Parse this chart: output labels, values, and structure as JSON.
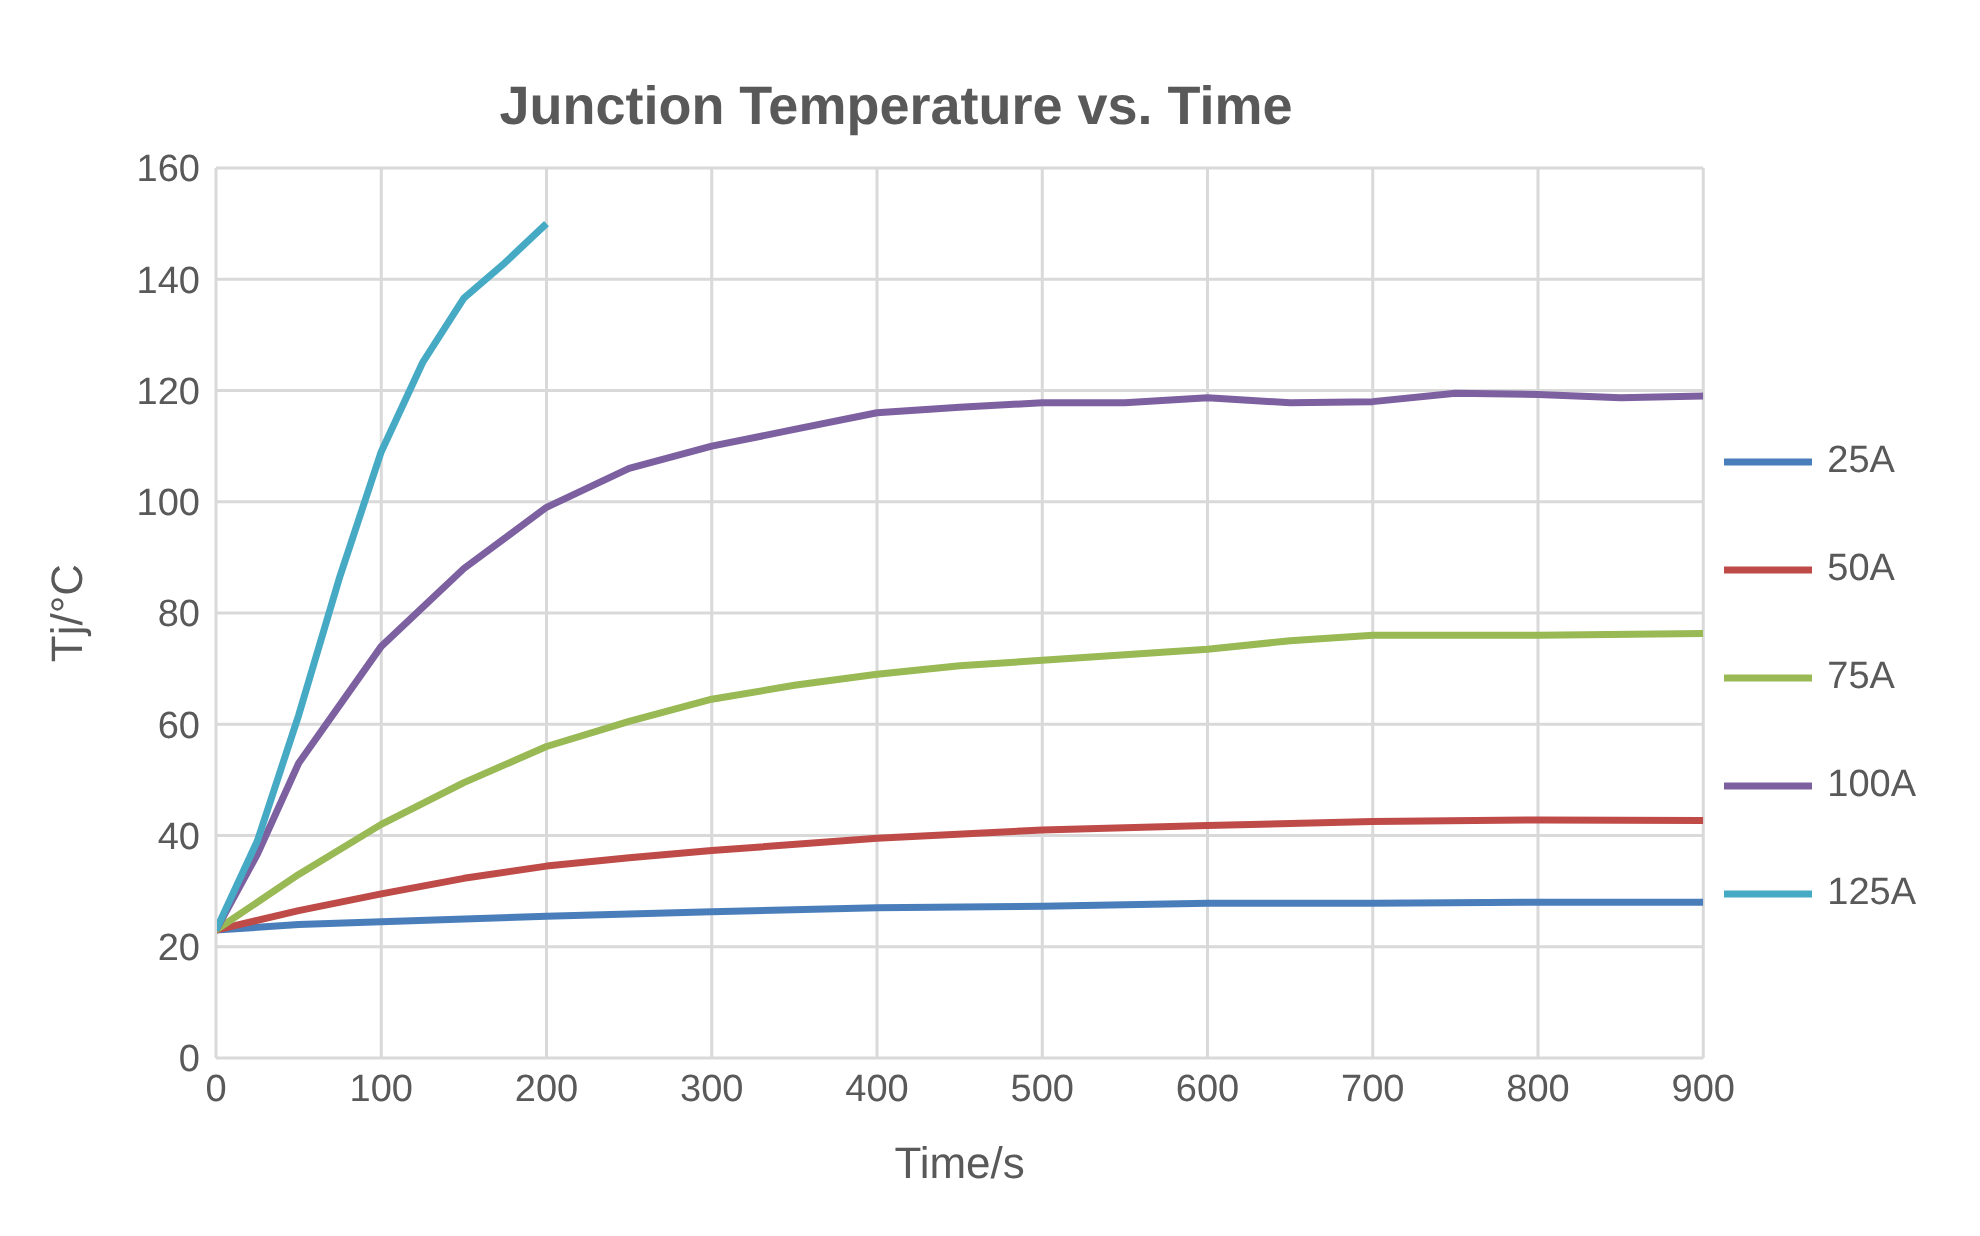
{
  "chart_data": {
    "type": "line",
    "title": "Junction Temperature vs. Time",
    "xlabel": "Time/s",
    "ylabel": "Tj/°C",
    "xlim": [
      0,
      900
    ],
    "xticks": [
      0,
      100,
      200,
      300,
      400,
      500,
      600,
      700,
      800,
      900
    ],
    "ylim": [
      0,
      160
    ],
    "yticks": [
      0,
      20,
      40,
      60,
      80,
      100,
      120,
      140,
      160
    ],
    "grid": true,
    "legend": "right",
    "marker": "none",
    "series": [
      {
        "name": "25A",
        "color": "#4a7ebb",
        "x": [
          0,
          50,
          100,
          200,
          300,
          400,
          500,
          600,
          700,
          800,
          900
        ],
        "values": [
          23,
          24,
          24.5,
          25.5,
          26.3,
          27,
          27.3,
          27.8,
          27.8,
          28,
          28
        ]
      },
      {
        "name": "50A",
        "color": "#be4b48",
        "x": [
          0,
          50,
          100,
          150,
          200,
          250,
          300,
          400,
          500,
          600,
          700,
          800,
          900
        ],
        "values": [
          23,
          26.5,
          29.5,
          32.3,
          34.5,
          36,
          37.3,
          39.5,
          41,
          41.8,
          42.5,
          42.8,
          42.7
        ]
      },
      {
        "name": "75A",
        "color": "#98b954",
        "x": [
          0,
          50,
          100,
          150,
          200,
          250,
          300,
          350,
          400,
          450,
          500,
          600,
          650,
          700,
          800,
          900
        ],
        "values": [
          23,
          33,
          42,
          49.5,
          56,
          60.5,
          64.5,
          67,
          69,
          70.5,
          71.5,
          73.5,
          75,
          76,
          76,
          76.3
        ]
      },
      {
        "name": "100A",
        "color": "#7d60a0",
        "x": [
          0,
          25,
          50,
          100,
          150,
          200,
          250,
          300,
          350,
          400,
          450,
          500,
          550,
          600,
          650,
          700,
          750,
          800,
          850,
          900
        ],
        "values": [
          23,
          36.6,
          53,
          74,
          88,
          99,
          106,
          110,
          113,
          116,
          117,
          117.8,
          117.8,
          118.7,
          117.8,
          118,
          119.5,
          119.3,
          118.7,
          119
        ]
      },
      {
        "name": "125A",
        "color": "#46aac5",
        "x": [
          0,
          25,
          50,
          75,
          100,
          125,
          150,
          175,
          200
        ],
        "values": [
          23,
          39,
          61.6,
          86.6,
          109,
          125,
          136.6,
          143,
          150
        ]
      }
    ]
  }
}
